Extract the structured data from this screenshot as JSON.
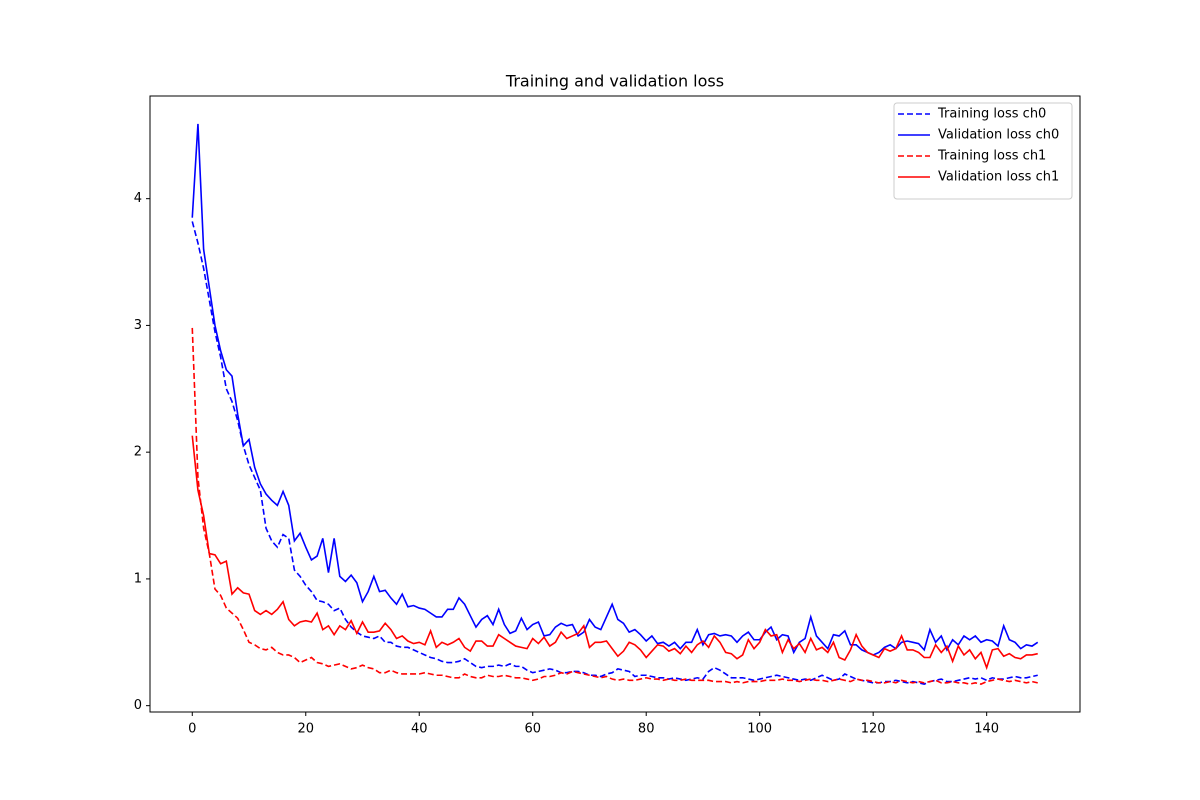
{
  "chart_data": {
    "type": "line",
    "title": "Training and validation loss",
    "x": [
      0,
      1,
      2,
      3,
      4,
      5,
      6,
      7,
      8,
      9,
      10,
      11,
      12,
      13,
      14,
      15,
      16,
      17,
      18,
      19,
      20,
      21,
      22,
      23,
      24,
      25,
      26,
      27,
      28,
      29,
      30,
      31,
      32,
      33,
      34,
      35,
      36,
      37,
      38,
      39,
      40,
      41,
      42,
      43,
      44,
      45,
      46,
      47,
      48,
      49,
      50,
      51,
      52,
      53,
      54,
      55,
      56,
      57,
      58,
      59,
      60,
      61,
      62,
      63,
      64,
      65,
      66,
      67,
      68,
      69,
      70,
      71,
      72,
      73,
      74,
      75,
      76,
      77,
      78,
      79,
      80,
      81,
      82,
      83,
      84,
      85,
      86,
      87,
      88,
      89,
      90,
      91,
      92,
      93,
      94,
      95,
      96,
      97,
      98,
      99,
      100,
      101,
      102,
      103,
      104,
      105,
      106,
      107,
      108,
      109,
      110,
      111,
      112,
      113,
      114,
      115,
      116,
      117,
      118,
      119,
      120,
      121,
      122,
      123,
      124,
      125,
      126,
      127,
      128,
      129,
      130,
      131,
      132,
      133,
      134,
      135,
      136,
      137,
      138,
      139,
      140,
      141,
      142,
      143,
      144,
      145,
      146,
      147,
      148,
      149
    ],
    "series": [
      {
        "name": "Training loss ch0",
        "color": "#0000ff",
        "linestyle": "dashed",
        "values": [
          3.82,
          3.65,
          3.45,
          3.2,
          2.95,
          2.75,
          2.5,
          2.4,
          2.25,
          2.05,
          1.9,
          1.8,
          1.7,
          1.4,
          1.3,
          1.25,
          1.35,
          1.32,
          1.07,
          1.02,
          0.95,
          0.9,
          0.83,
          0.82,
          0.8,
          0.75,
          0.77,
          0.68,
          0.62,
          0.58,
          0.55,
          0.54,
          0.53,
          0.55,
          0.5,
          0.5,
          0.47,
          0.46,
          0.46,
          0.44,
          0.42,
          0.4,
          0.38,
          0.37,
          0.35,
          0.34,
          0.34,
          0.35,
          0.37,
          0.34,
          0.31,
          0.3,
          0.31,
          0.31,
          0.32,
          0.31,
          0.33,
          0.31,
          0.31,
          0.28,
          0.26,
          0.27,
          0.28,
          0.29,
          0.28,
          0.26,
          0.26,
          0.27,
          0.27,
          0.26,
          0.24,
          0.24,
          0.23,
          0.25,
          0.26,
          0.29,
          0.28,
          0.27,
          0.23,
          0.24,
          0.24,
          0.23,
          0.22,
          0.22,
          0.21,
          0.22,
          0.21,
          0.2,
          0.21,
          0.22,
          0.21,
          0.27,
          0.3,
          0.28,
          0.25,
          0.22,
          0.22,
          0.22,
          0.21,
          0.2,
          0.21,
          0.22,
          0.23,
          0.24,
          0.23,
          0.22,
          0.21,
          0.2,
          0.21,
          0.2,
          0.22,
          0.24,
          0.22,
          0.2,
          0.21,
          0.25,
          0.23,
          0.21,
          0.2,
          0.19,
          0.18,
          0.18,
          0.19,
          0.19,
          0.2,
          0.19,
          0.18,
          0.19,
          0.18,
          0.17,
          0.19,
          0.2,
          0.21,
          0.19,
          0.19,
          0.2,
          0.21,
          0.22,
          0.21,
          0.22,
          0.2,
          0.22,
          0.21,
          0.21,
          0.22,
          0.23,
          0.22,
          0.22,
          0.23,
          0.24
        ]
      },
      {
        "name": "Validation loss ch0",
        "color": "#0000ff",
        "linestyle": "solid",
        "values": [
          3.85,
          4.59,
          3.6,
          3.3,
          3.0,
          2.8,
          2.65,
          2.6,
          2.3,
          2.05,
          2.1,
          1.88,
          1.75,
          1.67,
          1.62,
          1.58,
          1.69,
          1.58,
          1.3,
          1.36,
          1.25,
          1.15,
          1.18,
          1.32,
          1.05,
          1.32,
          1.02,
          0.98,
          1.03,
          0.97,
          0.82,
          0.9,
          1.02,
          0.9,
          0.91,
          0.85,
          0.8,
          0.88,
          0.78,
          0.79,
          0.77,
          0.76,
          0.73,
          0.7,
          0.7,
          0.76,
          0.76,
          0.85,
          0.8,
          0.71,
          0.62,
          0.68,
          0.71,
          0.64,
          0.76,
          0.64,
          0.57,
          0.59,
          0.69,
          0.6,
          0.64,
          0.66,
          0.55,
          0.56,
          0.62,
          0.65,
          0.63,
          0.64,
          0.55,
          0.58,
          0.68,
          0.62,
          0.6,
          0.7,
          0.8,
          0.68,
          0.65,
          0.58,
          0.6,
          0.56,
          0.51,
          0.55,
          0.49,
          0.5,
          0.47,
          0.5,
          0.45,
          0.5,
          0.5,
          0.6,
          0.48,
          0.56,
          0.57,
          0.55,
          0.56,
          0.55,
          0.5,
          0.55,
          0.58,
          0.52,
          0.52,
          0.58,
          0.62,
          0.52,
          0.56,
          0.55,
          0.42,
          0.5,
          0.53,
          0.7,
          0.55,
          0.5,
          0.45,
          0.56,
          0.55,
          0.59,
          0.48,
          0.48,
          0.44,
          0.42,
          0.4,
          0.42,
          0.46,
          0.48,
          0.45,
          0.5,
          0.51,
          0.5,
          0.49,
          0.44,
          0.6,
          0.5,
          0.55,
          0.44,
          0.52,
          0.48,
          0.55,
          0.52,
          0.55,
          0.5,
          0.52,
          0.51,
          0.47,
          0.63,
          0.52,
          0.5,
          0.45,
          0.48,
          0.47,
          0.5
        ]
      },
      {
        "name": "Training loss ch1",
        "color": "#ff0000",
        "linestyle": "dashed",
        "values": [
          2.98,
          1.8,
          1.4,
          1.2,
          0.92,
          0.87,
          0.77,
          0.73,
          0.69,
          0.6,
          0.5,
          0.48,
          0.45,
          0.44,
          0.46,
          0.42,
          0.4,
          0.4,
          0.38,
          0.34,
          0.36,
          0.38,
          0.34,
          0.33,
          0.31,
          0.32,
          0.33,
          0.31,
          0.29,
          0.3,
          0.32,
          0.3,
          0.29,
          0.26,
          0.26,
          0.28,
          0.26,
          0.25,
          0.25,
          0.25,
          0.25,
          0.26,
          0.25,
          0.24,
          0.24,
          0.23,
          0.22,
          0.22,
          0.25,
          0.23,
          0.22,
          0.22,
          0.24,
          0.23,
          0.23,
          0.24,
          0.23,
          0.22,
          0.22,
          0.21,
          0.2,
          0.21,
          0.23,
          0.23,
          0.24,
          0.26,
          0.25,
          0.27,
          0.26,
          0.25,
          0.24,
          0.23,
          0.22,
          0.23,
          0.21,
          0.2,
          0.21,
          0.2,
          0.2,
          0.21,
          0.22,
          0.21,
          0.21,
          0.2,
          0.21,
          0.2,
          0.2,
          0.21,
          0.2,
          0.2,
          0.2,
          0.2,
          0.19,
          0.19,
          0.19,
          0.18,
          0.19,
          0.18,
          0.19,
          0.19,
          0.19,
          0.2,
          0.2,
          0.2,
          0.21,
          0.2,
          0.2,
          0.19,
          0.2,
          0.21,
          0.2,
          0.2,
          0.19,
          0.2,
          0.21,
          0.2,
          0.19,
          0.21,
          0.2,
          0.2,
          0.19,
          0.18,
          0.18,
          0.19,
          0.18,
          0.2,
          0.19,
          0.18,
          0.19,
          0.18,
          0.19,
          0.2,
          0.18,
          0.18,
          0.19,
          0.18,
          0.18,
          0.17,
          0.18,
          0.17,
          0.19,
          0.2,
          0.21,
          0.2,
          0.19,
          0.2,
          0.19,
          0.18,
          0.19,
          0.18
        ]
      },
      {
        "name": "Validation loss ch1",
        "color": "#ff0000",
        "linestyle": "solid",
        "values": [
          2.13,
          1.7,
          1.5,
          1.2,
          1.19,
          1.12,
          1.14,
          0.88,
          0.93,
          0.89,
          0.88,
          0.75,
          0.72,
          0.75,
          0.72,
          0.76,
          0.82,
          0.68,
          0.63,
          0.66,
          0.67,
          0.66,
          0.73,
          0.6,
          0.63,
          0.56,
          0.63,
          0.6,
          0.67,
          0.57,
          0.66,
          0.58,
          0.58,
          0.59,
          0.65,
          0.6,
          0.53,
          0.55,
          0.51,
          0.49,
          0.5,
          0.48,
          0.59,
          0.46,
          0.5,
          0.48,
          0.5,
          0.53,
          0.46,
          0.43,
          0.51,
          0.51,
          0.47,
          0.47,
          0.56,
          0.53,
          0.5,
          0.47,
          0.46,
          0.45,
          0.53,
          0.49,
          0.54,
          0.47,
          0.5,
          0.58,
          0.53,
          0.55,
          0.57,
          0.63,
          0.46,
          0.5,
          0.5,
          0.51,
          0.45,
          0.39,
          0.43,
          0.5,
          0.48,
          0.44,
          0.38,
          0.43,
          0.48,
          0.47,
          0.43,
          0.45,
          0.41,
          0.47,
          0.42,
          0.48,
          0.51,
          0.46,
          0.55,
          0.5,
          0.42,
          0.41,
          0.37,
          0.4,
          0.52,
          0.45,
          0.5,
          0.6,
          0.55,
          0.56,
          0.42,
          0.52,
          0.45,
          0.49,
          0.42,
          0.53,
          0.44,
          0.46,
          0.42,
          0.5,
          0.38,
          0.36,
          0.44,
          0.56,
          0.47,
          0.42,
          0.4,
          0.38,
          0.45,
          0.43,
          0.45,
          0.55,
          0.44,
          0.44,
          0.42,
          0.38,
          0.38,
          0.48,
          0.42,
          0.47,
          0.35,
          0.47,
          0.4,
          0.44,
          0.37,
          0.42,
          0.3,
          0.44,
          0.45,
          0.39,
          0.41,
          0.38,
          0.37,
          0.4,
          0.4,
          0.41
        ]
      }
    ],
    "xlim": [
      -7.45,
      156.45
    ],
    "xticks": [
      0,
      20,
      40,
      60,
      80,
      100,
      120,
      140
    ],
    "ylim": [
      -0.05,
      4.81
    ],
    "yticks": [
      0,
      1,
      2,
      3,
      4
    ],
    "legend": "upper right"
  }
}
